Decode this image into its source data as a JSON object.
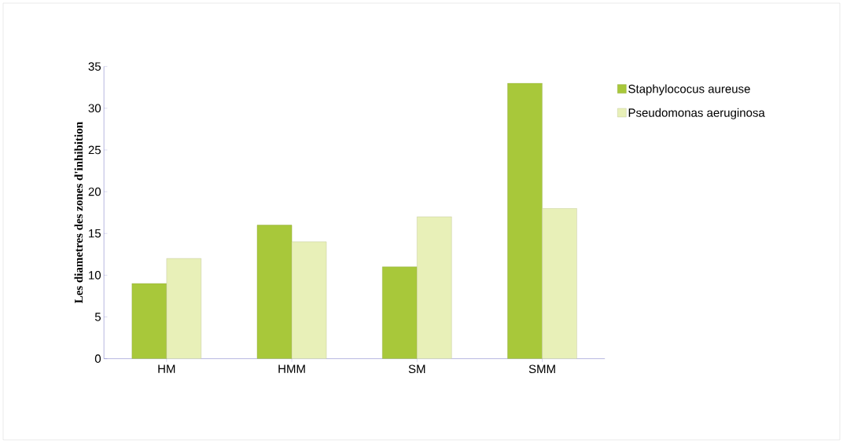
{
  "chart_data": {
    "type": "bar",
    "ylabel": "Les diametres des zones d'inhibition",
    "categories": [
      "HM",
      "HMM",
      "SM",
      "SMM"
    ],
    "series": [
      {
        "name": "Staphylococus aureuse",
        "color": "#a8c83a",
        "values": [
          9,
          16,
          11,
          33
        ]
      },
      {
        "name": "Pseudomonas aeruginosa",
        "color": "#e8f0b8",
        "values": [
          12,
          14,
          17,
          18
        ]
      }
    ],
    "ylim": [
      0,
      35
    ],
    "yticks": [
      0,
      5,
      10,
      15,
      20,
      25,
      30,
      35
    ],
    "legend": "right"
  }
}
